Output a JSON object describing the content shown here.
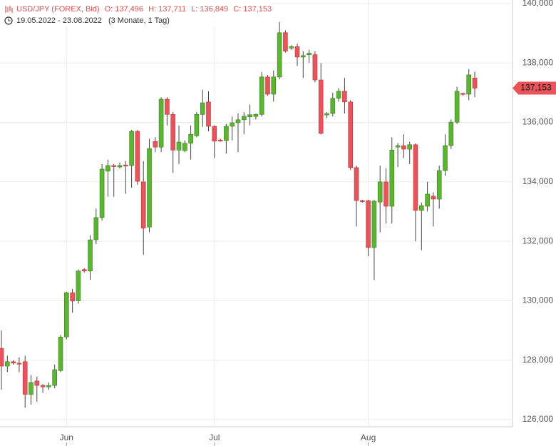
{
  "chart_data": {
    "type": "candlestick",
    "title": "USD/JPY (FOREX, Bid)",
    "ohlc_header": [
      "O: 137,496",
      "H: 137,711",
      "L: 136,849",
      "C: 137,153"
    ],
    "period": "19.05.2022 - 23.08.2022",
    "period_note": "(3 Monate, 1 Tag)",
    "categories": [
      null,
      null,
      null,
      null,
      null,
      null,
      null,
      null,
      null,
      null,
      null,
      "Jun",
      null,
      null,
      null,
      null,
      null,
      null,
      null,
      null,
      null,
      null,
      null,
      null,
      null,
      null,
      null,
      null,
      null,
      null,
      null,
      null,
      null,
      null,
      null,
      null,
      "Jul",
      null,
      null,
      null,
      null,
      null,
      null,
      null,
      null,
      null,
      null,
      null,
      null,
      null,
      null,
      null,
      null,
      null,
      null,
      null,
      null,
      null,
      null,
      null,
      null,
      null,
      "Aug",
      null,
      null,
      null,
      null,
      null,
      null,
      null,
      null,
      null,
      null,
      null,
      null,
      null,
      null,
      null,
      null,
      null,
      null
    ],
    "series": [
      {
        "up_color": "#5cb531",
        "down_color": "#e8545a",
        "open": [
          128.4,
          127.8,
          127.95,
          127.9,
          127.95,
          126.85,
          127.3,
          127.15,
          127.1,
          127.15,
          127.65,
          128.78,
          130.27,
          130.0,
          131.05,
          131.0,
          132.05,
          132.8,
          134.36,
          134.55,
          134.5,
          134.57,
          134.55,
          135.7,
          134.0,
          132.48,
          135.36,
          135.17,
          136.78,
          136.27,
          135.07,
          135.05,
          135.3,
          135.55,
          136.27,
          136.69,
          135.87,
          135.41,
          135.39,
          135.87,
          135.99,
          136.09,
          136.19,
          136.2,
          136.27,
          137.53,
          136.95,
          137.53,
          139.02,
          138.5,
          138.55,
          138.2,
          138.28,
          138.28,
          137.43,
          136.25,
          136.3,
          136.81,
          137.05,
          136.69,
          134.48,
          133.37,
          133.37,
          131.79,
          133.32,
          134.0,
          133.18,
          135.17,
          135.22,
          135.1,
          135.25,
          133.04,
          133.18,
          133.52,
          133.42,
          134.38,
          135.22,
          136.01,
          136.98,
          136.95,
          137.496
        ],
        "high": [
          129.0,
          128.15,
          128.0,
          128.1,
          128.15,
          127.5,
          127.45,
          127.2,
          127.25,
          127.85,
          128.85,
          130.3,
          130.4,
          131.05,
          131.1,
          132.2,
          133.1,
          134.6,
          134.75,
          134.6,
          134.65,
          134.7,
          135.75,
          135.75,
          134.7,
          135.45,
          135.5,
          136.85,
          136.85,
          136.35,
          135.9,
          135.4,
          135.9,
          136.35,
          137.1,
          137.05,
          135.9,
          135.45,
          135.95,
          136.2,
          136.3,
          136.35,
          136.6,
          136.3,
          137.7,
          137.6,
          137.75,
          139.38,
          139.1,
          138.6,
          138.65,
          138.4,
          138.45,
          138.4,
          138.0,
          136.35,
          137.0,
          137.15,
          137.5,
          136.75,
          134.55,
          133.4,
          133.4,
          133.4,
          134.55,
          134.45,
          135.5,
          135.3,
          135.6,
          135.35,
          135.3,
          133.3,
          134.0,
          133.65,
          134.55,
          135.6,
          136.1,
          137.2,
          137.0,
          137.8,
          137.711
        ],
        "low": [
          127.0,
          127.6,
          127.85,
          127.6,
          126.4,
          126.5,
          126.6,
          126.9,
          127.0,
          127.05,
          127.6,
          128.7,
          129.6,
          129.9,
          130.95,
          130.7,
          131.9,
          132.7,
          133.5,
          133.5,
          134.45,
          133.6,
          133.8,
          133.9,
          131.55,
          132.3,
          135.0,
          135.0,
          135.9,
          134.3,
          134.6,
          135.0,
          134.75,
          135.5,
          135.85,
          135.7,
          134.8,
          135.35,
          134.95,
          135.4,
          135.0,
          135.6,
          135.9,
          136.1,
          136.2,
          136.9,
          136.7,
          137.45,
          138.35,
          138.45,
          137.9,
          137.5,
          138.0,
          137.35,
          135.6,
          136.15,
          136.2,
          136.7,
          136.3,
          134.4,
          132.5,
          133.3,
          131.5,
          130.7,
          132.3,
          132.6,
          132.6,
          134.5,
          134.8,
          134.6,
          132.0,
          131.7,
          133.0,
          132.5,
          133.1,
          134.2,
          135.1,
          135.95,
          136.9,
          136.75,
          136.849
        ],
        "close": [
          127.8,
          127.95,
          127.9,
          127.88,
          126.85,
          127.25,
          127.15,
          127.1,
          127.15,
          127.68,
          128.78,
          130.27,
          129.99,
          131.0,
          131.0,
          132.05,
          132.8,
          134.43,
          134.55,
          134.52,
          134.55,
          134.55,
          135.7,
          134.02,
          132.44,
          135.12,
          135.17,
          136.78,
          136.27,
          135.07,
          135.34,
          135.3,
          135.6,
          136.27,
          136.66,
          135.87,
          135.37,
          135.39,
          135.87,
          135.99,
          136.09,
          136.21,
          136.26,
          136.27,
          137.53,
          136.95,
          137.53,
          139.02,
          138.4,
          138.55,
          138.2,
          138.25,
          138.33,
          137.43,
          135.63,
          136.3,
          136.81,
          137.05,
          136.69,
          134.48,
          133.37,
          133.35,
          131.79,
          133.35,
          134.0,
          133.18,
          135.07,
          135.22,
          135.1,
          135.25,
          133.04,
          133.2,
          133.59,
          133.42,
          134.38,
          135.22,
          136.01,
          137.05,
          136.95,
          137.6,
          137.153
        ]
      }
    ],
    "last_price": {
      "value": 137.153,
      "label": "137,153"
    },
    "ylim": [
      125.76,
      140.12
    ],
    "yticks": [
      {
        "value": 126,
        "label": "126,000"
      },
      {
        "value": 128,
        "label": "128,000"
      },
      {
        "value": 130,
        "label": "130,000"
      },
      {
        "value": 132,
        "label": "132,000"
      },
      {
        "value": 134,
        "label": "134,000"
      },
      {
        "value": 136,
        "label": "136,000"
      },
      {
        "value": 138,
        "label": "138,000"
      },
      {
        "value": 140,
        "label": "140,000"
      }
    ],
    "grid": true
  }
}
